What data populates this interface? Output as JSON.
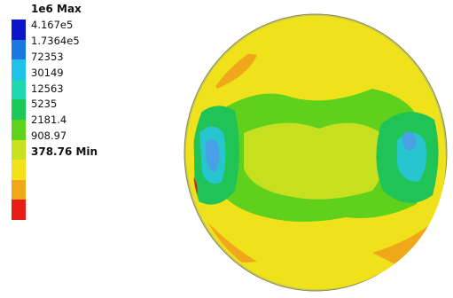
{
  "legend": {
    "levels": [
      {
        "label": "1e6 Max",
        "color": "#0b16c8",
        "strong": true
      },
      {
        "label": "4.167e5",
        "color": "#1a78e0",
        "strong": false
      },
      {
        "label": "1.7364e5",
        "color": "#22c2e8",
        "strong": false
      },
      {
        "label": "72353",
        "color": "#20d8b0",
        "strong": false
      },
      {
        "label": "30149",
        "color": "#1bc85a",
        "strong": false
      },
      {
        "label": "12563",
        "color": "#5ed31c",
        "strong": false
      },
      {
        "label": "5235",
        "color": "#c8e21e",
        "strong": false
      },
      {
        "label": "2181.4",
        "color": "#f1e21a",
        "strong": false
      },
      {
        "label": "908.97",
        "color": "#f0a81a",
        "strong": false
      },
      {
        "label": "378.76 Min",
        "color": "#e81e16",
        "strong": true
      }
    ]
  },
  "contour_colors": {
    "red": "#e01c14",
    "orange": "#f0a81a",
    "yellow": "#efe21b",
    "yellow_green": "#c6e020",
    "green": "#5fd11c",
    "mid_green": "#1fc356",
    "cyan": "#27c6cf",
    "light_blue": "#4aa0e4",
    "rim": "#c9c85a"
  }
}
